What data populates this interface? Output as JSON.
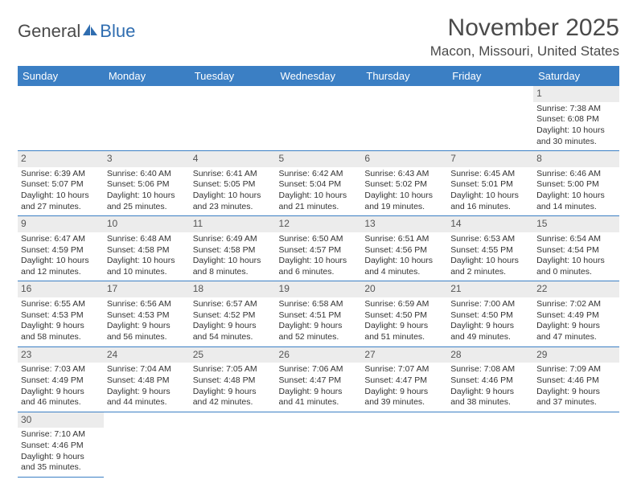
{
  "logo": {
    "text1": "General",
    "text2": "Blue"
  },
  "title": "November 2025",
  "location": "Macon, Missouri, United States",
  "weekdays": [
    "Sunday",
    "Monday",
    "Tuesday",
    "Wednesday",
    "Thursday",
    "Friday",
    "Saturday"
  ],
  "header_bg": "#3b7fc4",
  "daynum_bg": "#ececec",
  "weeks": [
    [
      null,
      null,
      null,
      null,
      null,
      null,
      {
        "n": "1",
        "sr": "7:38 AM",
        "ss": "6:08 PM",
        "dl": "10 hours and 30 minutes."
      }
    ],
    [
      {
        "n": "2",
        "sr": "6:39 AM",
        "ss": "5:07 PM",
        "dl": "10 hours and 27 minutes."
      },
      {
        "n": "3",
        "sr": "6:40 AM",
        "ss": "5:06 PM",
        "dl": "10 hours and 25 minutes."
      },
      {
        "n": "4",
        "sr": "6:41 AM",
        "ss": "5:05 PM",
        "dl": "10 hours and 23 minutes."
      },
      {
        "n": "5",
        "sr": "6:42 AM",
        "ss": "5:04 PM",
        "dl": "10 hours and 21 minutes."
      },
      {
        "n": "6",
        "sr": "6:43 AM",
        "ss": "5:02 PM",
        "dl": "10 hours and 19 minutes."
      },
      {
        "n": "7",
        "sr": "6:45 AM",
        "ss": "5:01 PM",
        "dl": "10 hours and 16 minutes."
      },
      {
        "n": "8",
        "sr": "6:46 AM",
        "ss": "5:00 PM",
        "dl": "10 hours and 14 minutes."
      }
    ],
    [
      {
        "n": "9",
        "sr": "6:47 AM",
        "ss": "4:59 PM",
        "dl": "10 hours and 12 minutes."
      },
      {
        "n": "10",
        "sr": "6:48 AM",
        "ss": "4:58 PM",
        "dl": "10 hours and 10 minutes."
      },
      {
        "n": "11",
        "sr": "6:49 AM",
        "ss": "4:58 PM",
        "dl": "10 hours and 8 minutes."
      },
      {
        "n": "12",
        "sr": "6:50 AM",
        "ss": "4:57 PM",
        "dl": "10 hours and 6 minutes."
      },
      {
        "n": "13",
        "sr": "6:51 AM",
        "ss": "4:56 PM",
        "dl": "10 hours and 4 minutes."
      },
      {
        "n": "14",
        "sr": "6:53 AM",
        "ss": "4:55 PM",
        "dl": "10 hours and 2 minutes."
      },
      {
        "n": "15",
        "sr": "6:54 AM",
        "ss": "4:54 PM",
        "dl": "10 hours and 0 minutes."
      }
    ],
    [
      {
        "n": "16",
        "sr": "6:55 AM",
        "ss": "4:53 PM",
        "dl": "9 hours and 58 minutes."
      },
      {
        "n": "17",
        "sr": "6:56 AM",
        "ss": "4:53 PM",
        "dl": "9 hours and 56 minutes."
      },
      {
        "n": "18",
        "sr": "6:57 AM",
        "ss": "4:52 PM",
        "dl": "9 hours and 54 minutes."
      },
      {
        "n": "19",
        "sr": "6:58 AM",
        "ss": "4:51 PM",
        "dl": "9 hours and 52 minutes."
      },
      {
        "n": "20",
        "sr": "6:59 AM",
        "ss": "4:50 PM",
        "dl": "9 hours and 51 minutes."
      },
      {
        "n": "21",
        "sr": "7:00 AM",
        "ss": "4:50 PM",
        "dl": "9 hours and 49 minutes."
      },
      {
        "n": "22",
        "sr": "7:02 AM",
        "ss": "4:49 PM",
        "dl": "9 hours and 47 minutes."
      }
    ],
    [
      {
        "n": "23",
        "sr": "7:03 AM",
        "ss": "4:49 PM",
        "dl": "9 hours and 46 minutes."
      },
      {
        "n": "24",
        "sr": "7:04 AM",
        "ss": "4:48 PM",
        "dl": "9 hours and 44 minutes."
      },
      {
        "n": "25",
        "sr": "7:05 AM",
        "ss": "4:48 PM",
        "dl": "9 hours and 42 minutes."
      },
      {
        "n": "26",
        "sr": "7:06 AM",
        "ss": "4:47 PM",
        "dl": "9 hours and 41 minutes."
      },
      {
        "n": "27",
        "sr": "7:07 AM",
        "ss": "4:47 PM",
        "dl": "9 hours and 39 minutes."
      },
      {
        "n": "28",
        "sr": "7:08 AM",
        "ss": "4:46 PM",
        "dl": "9 hours and 38 minutes."
      },
      {
        "n": "29",
        "sr": "7:09 AM",
        "ss": "4:46 PM",
        "dl": "9 hours and 37 minutes."
      }
    ],
    [
      {
        "n": "30",
        "sr": "7:10 AM",
        "ss": "4:46 PM",
        "dl": "9 hours and 35 minutes."
      },
      null,
      null,
      null,
      null,
      null,
      null
    ]
  ],
  "labels": {
    "sunrise": "Sunrise: ",
    "sunset": "Sunset: ",
    "daylight": "Daylight: "
  }
}
